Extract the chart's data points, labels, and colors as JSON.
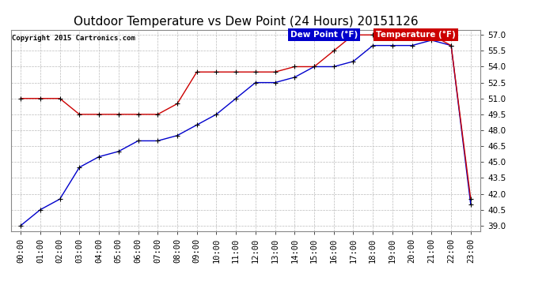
{
  "title": "Outdoor Temperature vs Dew Point (24 Hours) 20151126",
  "copyright": "Copyright 2015 Cartronics.com",
  "background_color": "#ffffff",
  "plot_bg_color": "#ffffff",
  "grid_color": "#bbbbbb",
  "hours": [
    0,
    1,
    2,
    3,
    4,
    5,
    6,
    7,
    8,
    9,
    10,
    11,
    12,
    13,
    14,
    15,
    16,
    17,
    18,
    19,
    20,
    21,
    22,
    23
  ],
  "temperature": [
    51.0,
    51.0,
    51.0,
    49.5,
    49.5,
    49.5,
    49.5,
    49.5,
    50.5,
    53.5,
    53.5,
    53.5,
    53.5,
    53.5,
    54.0,
    54.0,
    55.5,
    57.0,
    57.0,
    57.0,
    57.0,
    57.0,
    56.0,
    41.5
  ],
  "dew_point": [
    39.0,
    40.5,
    41.5,
    44.5,
    45.5,
    46.0,
    47.0,
    47.0,
    47.5,
    48.5,
    49.5,
    51.0,
    52.5,
    52.5,
    53.0,
    54.0,
    54.0,
    54.5,
    56.0,
    56.0,
    56.0,
    56.5,
    56.0,
    41.0
  ],
  "ylim": [
    38.5,
    57.5
  ],
  "yticks": [
    39.0,
    40.5,
    42.0,
    43.5,
    45.0,
    46.5,
    48.0,
    49.5,
    51.0,
    52.5,
    54.0,
    55.5,
    57.0
  ],
  "temp_color": "#cc0000",
  "dew_color": "#0000cc",
  "marker": "+",
  "marker_color": "#000000",
  "title_fontsize": 11,
  "tick_fontsize": 7.5,
  "legend_dew_bg": "#0000cc",
  "legend_temp_bg": "#cc0000",
  "legend_text_color": "#ffffff",
  "legend_label_dew": "Dew Point (°F)",
  "legend_label_temp": "Temperature (°F)"
}
